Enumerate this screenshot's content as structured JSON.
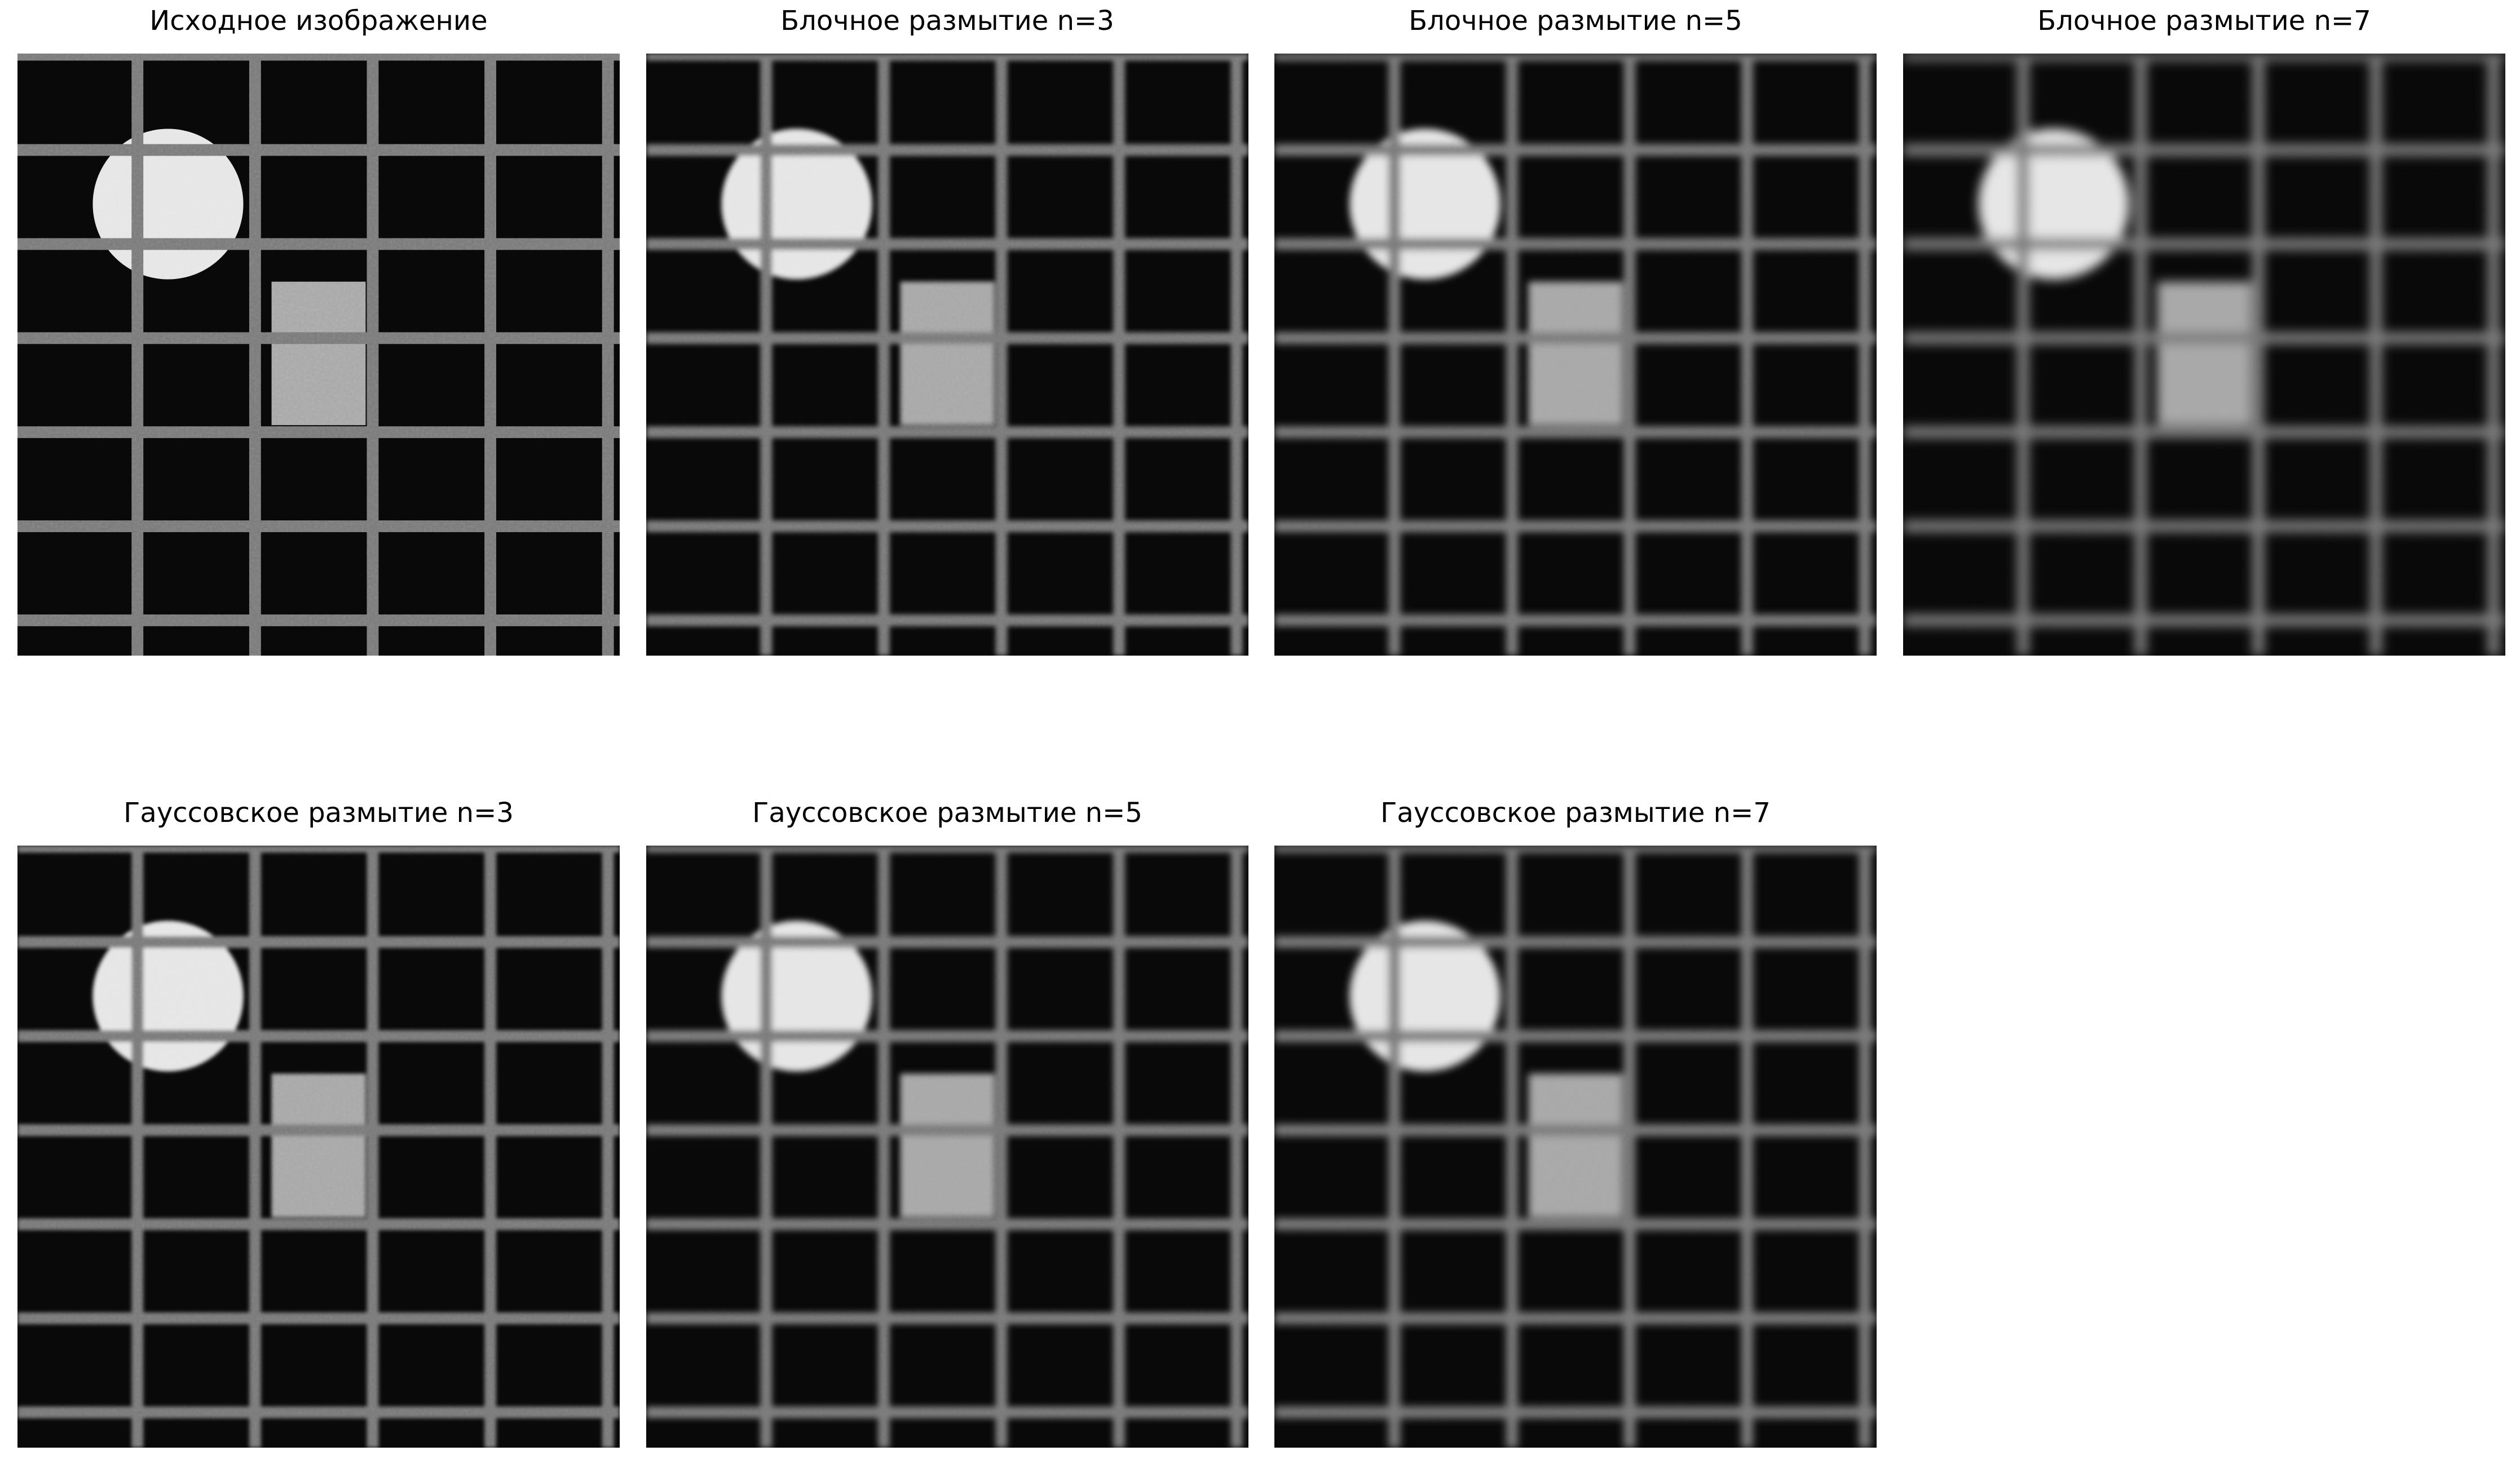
{
  "figure": {
    "panels": [
      {
        "id": "original",
        "title": "Исходное изображение",
        "blur": 0,
        "noise": 1.0
      },
      {
        "id": "box3",
        "title": "Блочное размытие n=3",
        "blur": 2.2,
        "noise": 0.6
      },
      {
        "id": "box5",
        "title": "Блочное размытие n=5",
        "blur": 3.6,
        "noise": 0.35
      },
      {
        "id": "box7",
        "title": "Блочное размытие n=7",
        "blur": 5.2,
        "noise": 0.2
      },
      {
        "id": "gauss3",
        "title": "Гауссовское размытие n=3",
        "blur": 1.8,
        "noise": 0.7
      },
      {
        "id": "gauss5",
        "title": "Гауссовское размытие n=5",
        "blur": 2.8,
        "noise": 0.45
      },
      {
        "id": "gauss7",
        "title": "Гауссовское размытие n=7",
        "blur": 3.8,
        "noise": 0.3
      }
    ]
  },
  "colors": {
    "background": "#080808",
    "grid": "#7a7a7a",
    "circle": "#e6e6e6",
    "rectangle": "#a8a8a8",
    "page": "#ffffff"
  }
}
